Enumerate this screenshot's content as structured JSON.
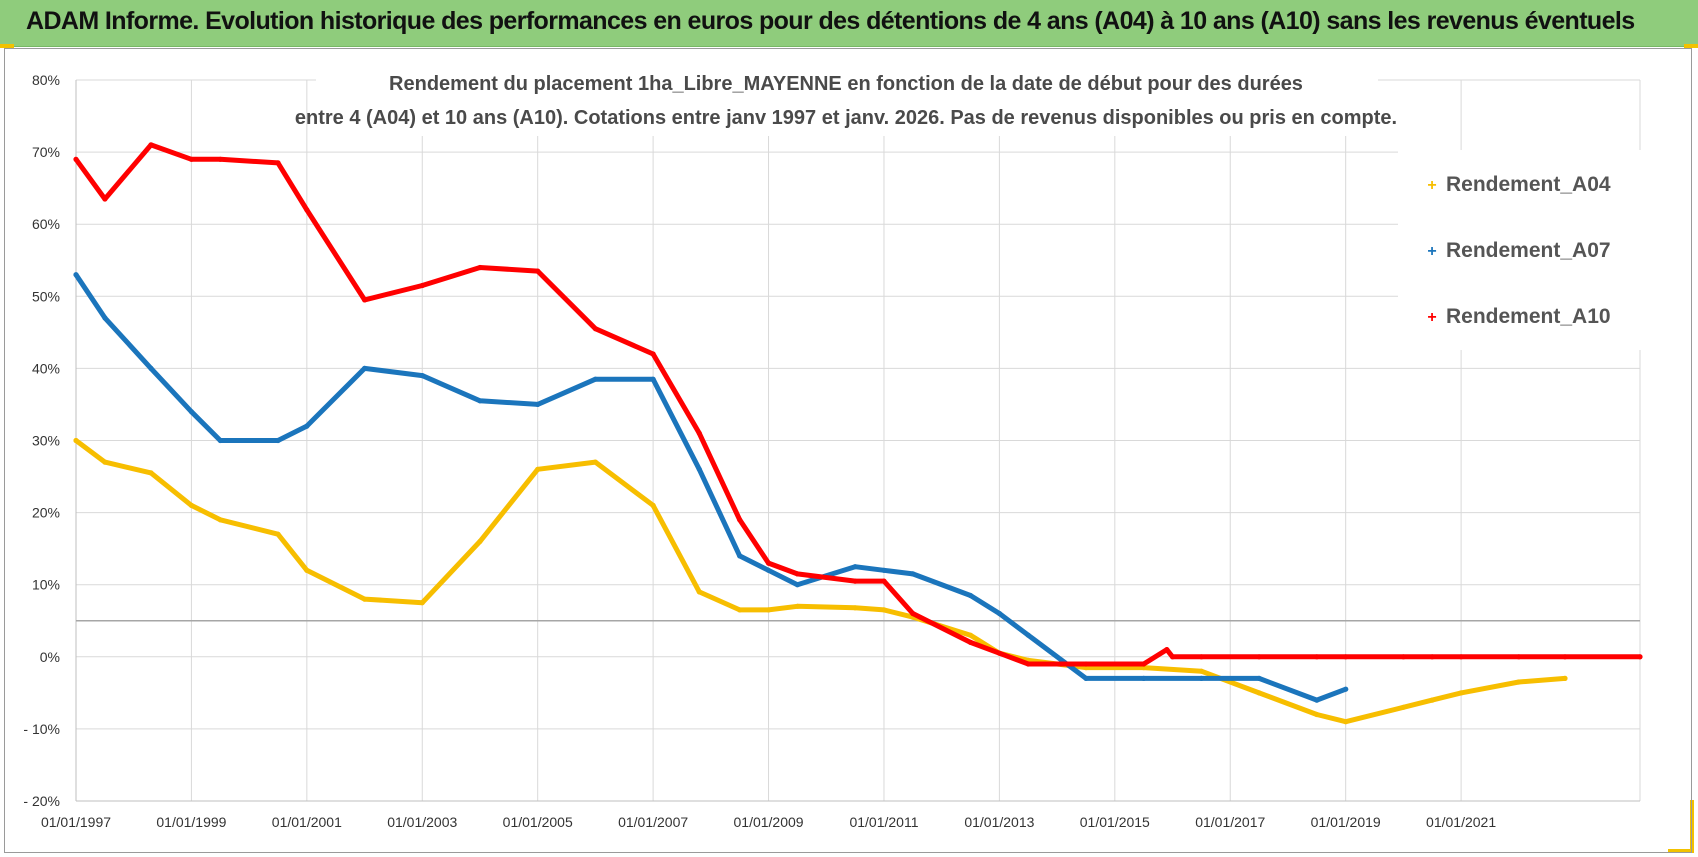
{
  "header": {
    "title": "ADAM Informe. Evolution historique des performances en euros pour des détentions de 4 ans (A04) à 10 ans (A10) sans les revenus éventuels"
  },
  "chart_data": {
    "type": "line",
    "title_line1": "Rendement du placement 1ha_Libre_MAYENNE  en fonction de la date de début pour des durées",
    "title_line2": "entre 4 (A04) et 10 ans (A10).  Cotations entre janv 1997 et janv. 2026. Pas de revenus disponibles ou pris en compte.",
    "xlabel": "",
    "ylabel": "",
    "xlim": [
      1997.0,
      2024.1
    ],
    "ylim": [
      -20,
      80
    ],
    "x_ticks": [
      "01/01/1997",
      "01/01/1999",
      "01/01/2001",
      "01/01/2003",
      "01/01/2005",
      "01/01/2007",
      "01/01/2009",
      "01/01/2011",
      "01/01/2013",
      "01/01/2015",
      "01/01/2017",
      "01/01/2019",
      "01/01/2021"
    ],
    "x_tick_values": [
      1997,
      1999,
      2001,
      2003,
      2005,
      2007,
      2009,
      2011,
      2013,
      2015,
      2017,
      2019,
      2021
    ],
    "y_ticks": [
      "80%",
      "70%",
      "60%",
      "50%",
      "40%",
      "30%",
      "20%",
      "10%",
      "0%",
      "- 10%",
      "- 20%"
    ],
    "y_tick_values": [
      80,
      70,
      60,
      50,
      40,
      30,
      20,
      10,
      0,
      -10,
      -20
    ],
    "reference_line": 5,
    "grid": true,
    "legend_position": "right",
    "series": [
      {
        "name": "Rendement_A04",
        "color": "#f7be00",
        "x": [
          1997.0,
          1997.5,
          1998.3,
          1999.0,
          1999.5,
          2000.5,
          2001.0,
          2002.0,
          2003.0,
          2004.0,
          2005.0,
          2006.0,
          2007.0,
          2007.8,
          2008.5,
          2009.0,
          2009.5,
          2010.5,
          2011.0,
          2011.5,
          2012.5,
          2013.0,
          2013.5,
          2014.5,
          2015.5,
          2016.5,
          2017.5,
          2018.5,
          2019.0,
          2020.0,
          2020.5,
          2021.0,
          2022.0,
          2022.8
        ],
        "values": [
          30,
          27,
          25.5,
          21,
          19,
          17,
          12,
          8,
          7.5,
          16,
          26,
          27,
          21,
          9,
          6.5,
          6.5,
          7,
          6.8,
          6.5,
          5.5,
          3,
          0.5,
          -0.5,
          -1.5,
          -1.5,
          -2,
          -5,
          -8,
          -9,
          -7,
          -6,
          -5,
          -3.5,
          -3
        ]
      },
      {
        "name": "Rendement_A07",
        "color": "#1b75bc",
        "x": [
          1997.0,
          1997.5,
          1998.3,
          1999.0,
          1999.5,
          2000.5,
          2001.0,
          2002.0,
          2003.0,
          2004.0,
          2005.0,
          2006.0,
          2007.0,
          2007.8,
          2008.5,
          2009.0,
          2009.5,
          2010.5,
          2011.0,
          2011.5,
          2012.5,
          2013.0,
          2013.5,
          2014.5,
          2015.5,
          2016.5,
          2017.5,
          2018.5,
          2019.0
        ],
        "values": [
          53,
          47,
          40,
          34,
          30,
          30,
          32,
          40,
          39,
          35.5,
          35,
          38.5,
          38.5,
          26,
          14,
          12,
          10,
          12.5,
          12,
          11.5,
          8.5,
          6,
          3,
          -3,
          -3,
          -3,
          -3,
          -6,
          -4.5
        ]
      },
      {
        "name": "Rendement_A10",
        "color": "#ff0000",
        "x": [
          1997.0,
          1997.5,
          1998.3,
          1999.0,
          1999.5,
          2000.5,
          2001.0,
          2002.0,
          2003.0,
          2004.0,
          2005.0,
          2006.0,
          2007.0,
          2007.8,
          2008.5,
          2009.0,
          2009.5,
          2010.5,
          2011.0,
          2011.5,
          2012.5,
          2013.0,
          2013.5,
          2014.5,
          2015.5,
          2015.9,
          2016.0,
          2016.5,
          2017.5,
          2018.5,
          2019.0,
          2020.0,
          2020.5,
          2021.0,
          2022.0,
          2022.8,
          2024.1
        ],
        "values": [
          69,
          63.5,
          71,
          69,
          69,
          68.5,
          62,
          49.5,
          51.5,
          54,
          53.5,
          45.5,
          42,
          31,
          19,
          13,
          11.5,
          10.5,
          10.5,
          6,
          2,
          0.5,
          -1,
          -1,
          -1,
          1,
          0,
          0,
          0,
          0,
          0,
          0,
          0,
          0,
          0,
          0,
          0
        ]
      }
    ]
  }
}
